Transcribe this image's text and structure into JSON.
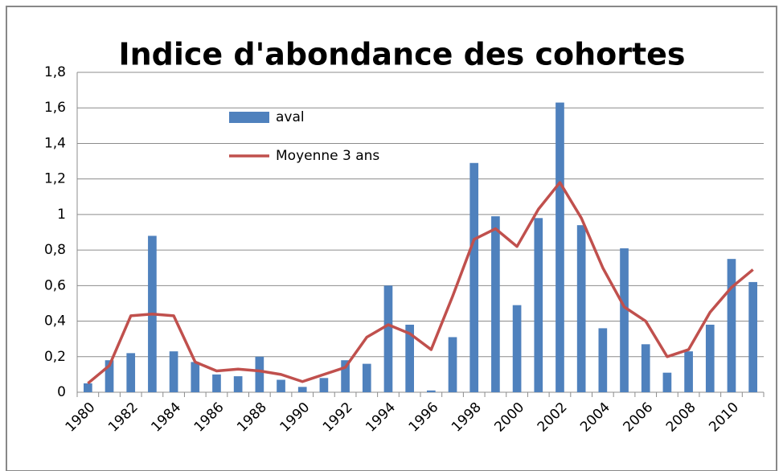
{
  "chart_data": {
    "type": "bar",
    "title": "Indice d'abondance des cohortes",
    "categories": [
      "1980",
      null,
      "1982",
      null,
      "1984",
      null,
      "1986",
      null,
      "1988",
      null,
      "1990",
      null,
      "1992",
      null,
      "1994",
      null,
      "1996",
      null,
      "1998",
      null,
      "2000",
      null,
      "2002",
      null,
      "2004",
      null,
      "2006",
      null,
      "2008",
      null,
      "2010",
      null
    ],
    "series": [
      {
        "name": "aval",
        "type": "bar",
        "color": "#4f81bd",
        "values": [
          0.05,
          0.18,
          0.22,
          0.88,
          0.23,
          0.17,
          0.1,
          0.09,
          0.2,
          0.07,
          0.03,
          0.08,
          0.18,
          0.16,
          0.6,
          0.38,
          0.01,
          0.31,
          1.29,
          0.99,
          0.49,
          0.98,
          1.63,
          0.94,
          0.36,
          0.81,
          0.27,
          0.11,
          0.23,
          0.38,
          0.75,
          0.62
        ]
      },
      {
        "name": "Moyenne 3 ans",
        "type": "line",
        "color": "#c0504d",
        "values": [
          0.05,
          0.15,
          0.43,
          0.44,
          0.43,
          0.17,
          0.12,
          0.13,
          0.12,
          0.1,
          0.06,
          0.1,
          0.14,
          0.31,
          0.38,
          0.33,
          0.24,
          0.54,
          0.86,
          0.92,
          0.82,
          1.03,
          1.18,
          0.98,
          0.7,
          0.48,
          0.4,
          0.2,
          0.24,
          0.45,
          0.59,
          0.69
        ]
      }
    ],
    "ylim": [
      0,
      1.8
    ],
    "yticks": [
      0,
      {
        "value": 0.2,
        "label": "0,2"
      },
      {
        "value": 0.4,
        "label": "0,4"
      },
      {
        "value": 0.6,
        "label": "0,6"
      },
      {
        "value": 0.8,
        "label": "0,8"
      },
      1,
      {
        "value": 1.2,
        "label": "1,2"
      },
      {
        "value": 1.4,
        "label": "1,4"
      },
      {
        "value": 1.6,
        "label": "1,6"
      },
      {
        "value": 1.8,
        "label": "1,8"
      }
    ],
    "grid": true,
    "legend": "upper left"
  }
}
